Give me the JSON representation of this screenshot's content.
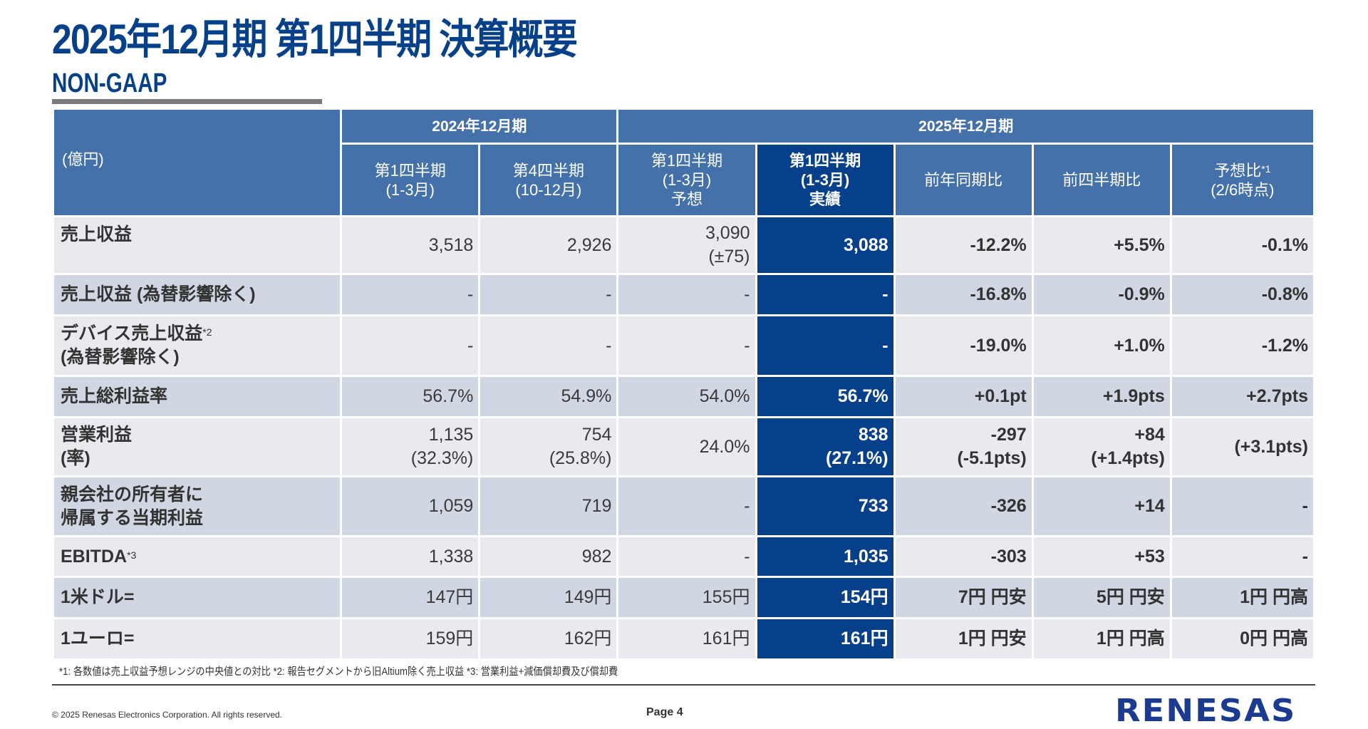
{
  "header": {
    "title": "2025年12月期 第1四半期 決算概要",
    "subtitle": "NON-GAAP"
  },
  "table": {
    "unit_label": "(億円)",
    "groups": {
      "fy2024": "2024年12月期",
      "fy2025": "2025年12月期"
    },
    "columns": [
      {
        "lines": [
          "第1四半期",
          "(1-3月)"
        ]
      },
      {
        "lines": [
          "第4四半期",
          "(10-12月)"
        ]
      },
      {
        "lines": [
          "第1四半期",
          "(1-3月)",
          "予想"
        ]
      },
      {
        "lines": [
          "第1四半期",
          "(1-3月)",
          "実績"
        ]
      },
      {
        "lines": [
          "前年同期比"
        ]
      },
      {
        "lines": [
          "前四半期比"
        ]
      },
      {
        "lines": [
          "予想比",
          "(2/6時点)"
        ],
        "footnote_mark": "*1"
      }
    ],
    "rows": [
      {
        "label": [
          "売上収益"
        ],
        "cells": [
          [
            "3,518"
          ],
          [
            "2,926"
          ],
          [
            "3,090",
            "(±75)"
          ],
          [
            "3,088"
          ],
          [
            "-12.2%"
          ],
          [
            "+5.5%"
          ],
          [
            "-0.1%"
          ]
        ]
      },
      {
        "label": [
          "売上収益 (為替影響除く)"
        ],
        "cells": [
          [
            "-"
          ],
          [
            "-"
          ],
          [
            "-"
          ],
          [
            "-"
          ],
          [
            "-16.8%"
          ],
          [
            "-0.9%"
          ],
          [
            "-0.8%"
          ]
        ]
      },
      {
        "label": [
          "デバイス売上収益",
          "(為替影響除く)"
        ],
        "label_mark": "*2",
        "cells": [
          [
            "-"
          ],
          [
            "-"
          ],
          [
            "-"
          ],
          [
            "-"
          ],
          [
            "-19.0%"
          ],
          [
            "+1.0%"
          ],
          [
            "-1.2%"
          ]
        ]
      },
      {
        "label": [
          "売上総利益率"
        ],
        "cells": [
          [
            "56.7%"
          ],
          [
            "54.9%"
          ],
          [
            "54.0%"
          ],
          [
            "56.7%"
          ],
          [
            "+0.1pt"
          ],
          [
            "+1.9pts"
          ],
          [
            "+2.7pts"
          ]
        ]
      },
      {
        "label": [
          "営業利益",
          "(率)"
        ],
        "cells": [
          [
            "1,135",
            "(32.3%)"
          ],
          [
            "754",
            "(25.8%)"
          ],
          [
            "24.0%"
          ],
          [
            "838",
            "(27.1%)"
          ],
          [
            "-297",
            "(-5.1pts)"
          ],
          [
            "+84",
            "(+1.4pts)"
          ],
          [
            "(+3.1pts)"
          ]
        ]
      },
      {
        "label": [
          "親会社の所有者に",
          "帰属する当期利益"
        ],
        "cells": [
          [
            "1,059"
          ],
          [
            "719"
          ],
          [
            "-"
          ],
          [
            "733"
          ],
          [
            "-326"
          ],
          [
            "+14"
          ],
          [
            "-"
          ]
        ]
      },
      {
        "label": [
          "EBITDA"
        ],
        "label_mark": "*3",
        "cells": [
          [
            "1,338"
          ],
          [
            "982"
          ],
          [
            "-"
          ],
          [
            "1,035"
          ],
          [
            "-303"
          ],
          [
            "+53"
          ],
          [
            "-"
          ]
        ]
      },
      {
        "label": [
          "1米ドル="
        ],
        "cells": [
          [
            "147円"
          ],
          [
            "149円"
          ],
          [
            "155円"
          ],
          [
            "154円"
          ],
          [
            "7円 円安"
          ],
          [
            "5円 円安"
          ],
          [
            "1円 円高"
          ]
        ]
      },
      {
        "label": [
          "1ユーロ="
        ],
        "cells": [
          [
            "159円"
          ],
          [
            "162円"
          ],
          [
            "161円"
          ],
          [
            "161円"
          ],
          [
            "1円 円安"
          ],
          [
            "1円 円高"
          ],
          [
            "0円 円高"
          ]
        ]
      }
    ]
  },
  "footnote": "*1: 各数値は売上収益予想レンジの中央値との対比  *2: 報告セグメントから旧Altium除く売上収益  *3: 営業利益+減価償却費及び償却費",
  "footer": {
    "copyright": "© 2025 Renesas Electronics Corporation. All rights reserved.",
    "page": "Page 4",
    "logo": "RENESAS"
  },
  "colors": {
    "brand_blue": "#064089",
    "header_blue": "#4471a9",
    "row_light": "#e9eaef",
    "row_dark": "#d0d6e2"
  }
}
